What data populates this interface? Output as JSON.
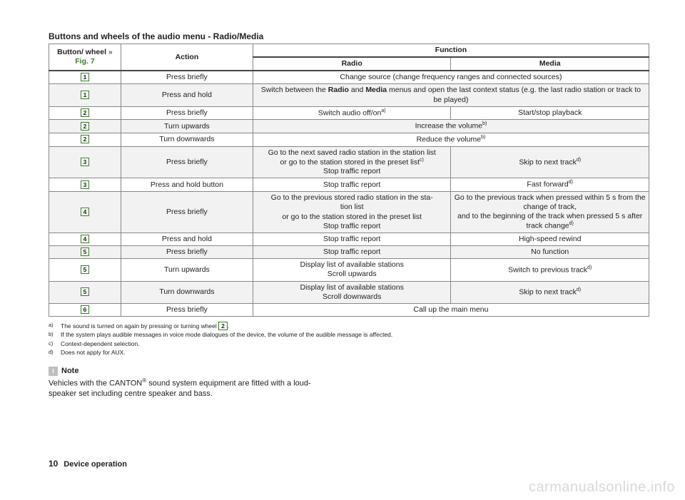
{
  "title": "Buttons and wheels of the audio menu - Radio/Media",
  "header": {
    "col1": "Button/\nwheel ",
    "col1_link": "» Fig. 7",
    "col2": "Action",
    "func": "Function",
    "radio": "Radio",
    "media": "Media"
  },
  "rows": [
    {
      "num": "1",
      "action": "Press briefly",
      "span": true,
      "text": "Change source (change frequency ranges and connected sources)",
      "alt": false
    },
    {
      "num": "1",
      "action": "Press and hold",
      "span": true,
      "html": "Switch between the <span class='bold'>Radio</span> and <span class='bold'>Media</span> menus and open the last context status (e.g. the last radio station or track to be played)",
      "alt": true
    },
    {
      "num": "2",
      "action": "Press briefly",
      "radio_html": "Switch audio off/on<span class='sup'>a)</span>",
      "media": "Start/stop playback",
      "alt": false
    },
    {
      "num": "2",
      "action": "Turn upwards",
      "span": true,
      "html": "Increase the volume<span class='sup'>b)</span>",
      "alt": true
    },
    {
      "num": "2",
      "action": "Turn downwards",
      "span": true,
      "html": "Reduce the volume<span class='sup'>b)</span>",
      "alt": false
    },
    {
      "num": "3",
      "action": "Press briefly",
      "radio_html": "Go to the next saved radio station in the station list<br>or go to the station stored in the preset list<span class='sup'>c)</span><br>Stop traffic report",
      "media_html": "Skip to next track<span class='sup'>d)</span>",
      "alt": true
    },
    {
      "num": "3",
      "action": "Press and hold button",
      "radio": "Stop traffic report",
      "media_html": "Fast forward<span class='sup'>d)</span>",
      "alt": false
    },
    {
      "num": "4",
      "action": "Press briefly",
      "radio_html": "Go to the previous stored radio station in the sta-<br>tion list<br>or go to the station stored in the preset list<br>Stop traffic report",
      "media_html": "Go to the previous track when pressed within 5 s from the change of track,<br>and to the beginning of the track when pressed 5 s after track change<span class='sup'>d)</span>",
      "alt": true
    },
    {
      "num": "4",
      "action": "Press and hold",
      "radio": "Stop traffic report",
      "media": "High-speed rewind",
      "alt": false
    },
    {
      "num": "5",
      "action": "Press briefly",
      "radio": "Stop traffic report",
      "media": "No function",
      "alt": true
    },
    {
      "num": "5",
      "action": "Turn upwards",
      "radio_html": "Display list of available stations<br>Scroll upwards",
      "media_html": "Switch to previous track<span class='sup'>d)</span>",
      "alt": false
    },
    {
      "num": "5",
      "action": "Turn downwards",
      "radio_html": "Display list of available stations<br>Scroll downwards",
      "media_html": "Skip to next track<span class='sup'>d)</span>",
      "alt": true
    },
    {
      "num": "6",
      "action": "Press briefly",
      "span": true,
      "text": "Call up the main menu",
      "alt": false
    }
  ],
  "footnotes": [
    {
      "lbl": "a)",
      "html": "The sound is turned on again by pressing or turning wheel <span class='btn-num'>2</span>."
    },
    {
      "lbl": "b)",
      "text": "If the system plays audible messages in voice mode dialogues of the device, the volume of the audible message is affected."
    },
    {
      "lbl": "c)",
      "text": "Context-dependent selection."
    },
    {
      "lbl": "d)",
      "text": "Does not apply for AUX."
    }
  ],
  "note": {
    "title": "Note",
    "body_html": "Vehicles with the CANTON<span class='reg'>®</span> sound system equipment are fitted with a loud-<br>speaker set including centre speaker and bass."
  },
  "footer": {
    "page": "10",
    "section": "Device operation"
  },
  "watermark": "carmanualsonline.info"
}
